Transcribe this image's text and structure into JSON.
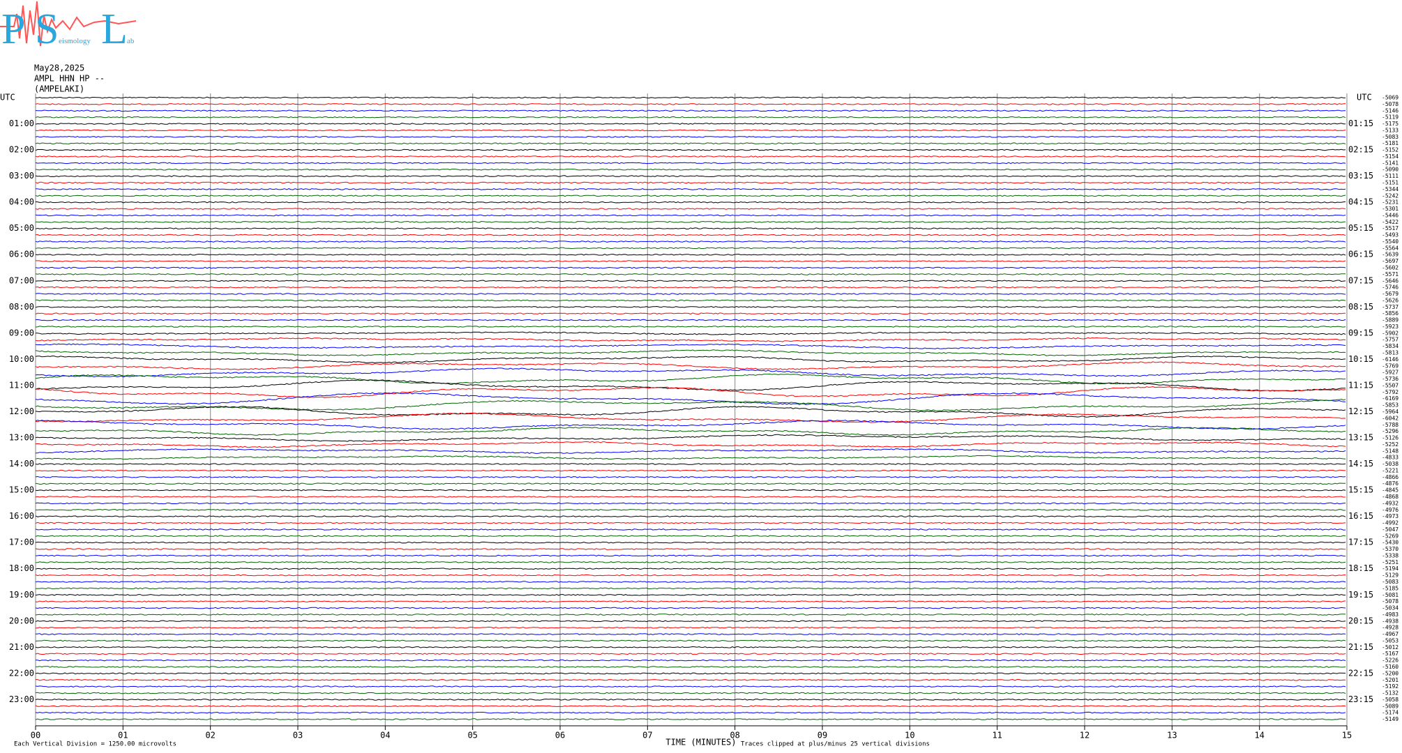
{
  "logo": {
    "letters": [
      "P",
      "S",
      "L"
    ],
    "caption": "eismology",
    "caption_end": "ab"
  },
  "header": {
    "date": "May28,2025",
    "station": "AMPL HHN HP --",
    "location": "(AMPELAKI)"
  },
  "left_labels": [
    "UTC",
    "01:00",
    "02:00",
    "03:00",
    "04:00",
    "05:00",
    "06:00",
    "07:00",
    "08:00",
    "09:00",
    "10:00",
    "11:00",
    "12:00",
    "13:00",
    "14:00",
    "15:00",
    "16:00",
    "17:00",
    "18:00",
    "19:00",
    "20:00",
    "21:00",
    "22:00",
    "23:00"
  ],
  "right_labels": [
    "UTC",
    "01:15",
    "02:15",
    "03:15",
    "04:15",
    "05:15",
    "06:15",
    "07:15",
    "08:15",
    "09:15",
    "10:15",
    "11:15",
    "12:15",
    "13:15",
    "14:15",
    "15:15",
    "16:15",
    "17:15",
    "18:15",
    "19:15",
    "20:15",
    "21:15",
    "22:15",
    "23:15"
  ],
  "trace_colors": [
    "#000000",
    "#ff0000",
    "#0000ff",
    "#006400"
  ],
  "trace_offsets": [
    -5069,
    -5078,
    -5146,
    -5119,
    -5175,
    -5133,
    -5083,
    -5181,
    -5152,
    -5154,
    -5141,
    -5090,
    -5111,
    -5151,
    -5344,
    -5242,
    -5231,
    -5301,
    -5446,
    -5422,
    -5517,
    -5493,
    -5540,
    -5564,
    -5639,
    -5697,
    -5602,
    -5571,
    -5646,
    -5746,
    -5679,
    -5626,
    -5737,
    -5856,
    -5889,
    -5923,
    -5902,
    -5757,
    -5834,
    -5813,
    -6146,
    -5769,
    -5927,
    -5736,
    -5507,
    -5792,
    -6169,
    -5853,
    -5964,
    -6042,
    -5788,
    -5296,
    -5126,
    -5252,
    -5148,
    -4833,
    -5038,
    -5221,
    -4866,
    -4876,
    -4845,
    -4868,
    -4932,
    -4976,
    -4973,
    -4992,
    -5047,
    -5269,
    -5430,
    -5370,
    -5338,
    -5251,
    -5194,
    -5129,
    -5083,
    -5185,
    -5081,
    -5078,
    -5034,
    -4983,
    -4938,
    -4928,
    -4967,
    -5053,
    -5012,
    -5167,
    -5226,
    -5160,
    -5200,
    -5201,
    -5192,
    -5132,
    -5058,
    -5089,
    -5174,
    -5149
  ],
  "xlim": [
    0,
    15
  ],
  "xticks": [
    {
      "value": 0,
      "label": "00"
    },
    {
      "value": 1,
      "label": "01"
    },
    {
      "value": 2,
      "label": "02"
    },
    {
      "value": 3,
      "label": "03"
    },
    {
      "value": 4,
      "label": "04"
    },
    {
      "value": 5,
      "label": "05"
    },
    {
      "value": 6,
      "label": "06"
    },
    {
      "value": 7,
      "label": "07"
    },
    {
      "value": 8,
      "label": "08"
    },
    {
      "value": 9,
      "label": "09"
    },
    10,
    11,
    12,
    13,
    14,
    15
  ],
  "xlabel": "TIME (MINUTES)",
  "footer_left": "Each Vertical Division = 1250.00 microvolts",
  "footer_right": "Traces clipped at plus/minus 25 vertical divisions"
}
